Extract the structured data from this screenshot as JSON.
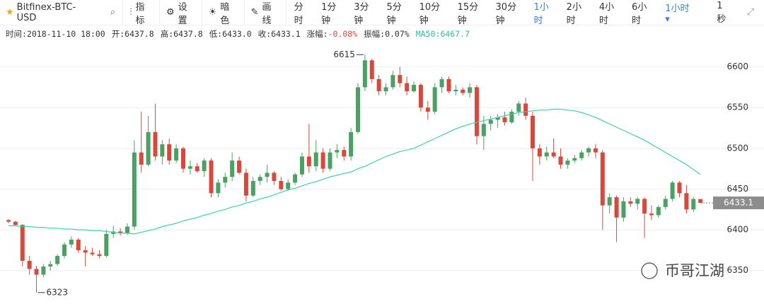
{
  "toolbar": {
    "symbol": "Bitfinex-BTC-USD",
    "buttons": [
      "指标",
      "设置",
      "暗色",
      "画线"
    ],
    "intervals": [
      "分时",
      "1分钟",
      "3分钟",
      "5分钟",
      "10分钟",
      "15分钟",
      "30分钟",
      "1小时",
      "2小时",
      "4小时",
      "6小时"
    ],
    "dropdown": "1小时",
    "speed": "1秒"
  },
  "info": [
    {
      "label": "时间:",
      "value": "2018-11-10 18:00"
    },
    {
      "label": "开:",
      "value": "6437.8"
    },
    {
      "label": "高:",
      "value": "6437.8"
    },
    {
      "label": "低:",
      "value": "6433.0"
    },
    {
      "label": "收:",
      "value": "6433.1"
    },
    {
      "label": "涨幅:",
      "value": "-0.08%"
    },
    {
      "label": "振幅:",
      "value": "0.07%"
    },
    {
      "label": "MA50:",
      "value": "6467.7"
    }
  ],
  "watermark": "币哥江湖",
  "chart_data": {
    "type": "candlestick",
    "up_color": "#4aa163",
    "down_color": "#d9483b",
    "ma_color": "#3fcfa8",
    "grid": true,
    "ylim": [
      6309,
      6630
    ],
    "yticks": [
      6350,
      6400,
      6450,
      6500,
      6550,
      6600
    ],
    "open": [
      6412,
      6410,
      6406,
      6362,
      6352,
      6345,
      6355,
      6358,
      6368,
      6382,
      6388,
      6375,
      6372,
      6370,
      6368,
      6395,
      6398,
      6396,
      6404,
      6495,
      6480,
      6520,
      6490,
      6505,
      6485,
      6500,
      6475,
      6478,
      6472,
      6485,
      6445,
      6458,
      6465,
      6485,
      6470,
      6442,
      6460,
      6465,
      6470,
      6460,
      6450,
      6458,
      6468,
      6490,
      6478,
      6495,
      6475,
      6495,
      6498,
      6490,
      6520,
      6575,
      6608,
      6585,
      6570,
      6575,
      6590,
      6580,
      6570,
      6578,
      6550,
      6545,
      6575,
      6585,
      6570,
      6572,
      6568,
      6575,
      6515,
      6530,
      6535,
      6538,
      6532,
      6545,
      6555,
      6540,
      6500,
      6490,
      6495,
      6490,
      6480,
      6485,
      6488,
      6495,
      6500,
      6495,
      6430,
      6440,
      6415,
      6435,
      6432,
      6438,
      6420,
      6418,
      6428,
      6438,
      6458,
      6445,
      6425,
      6437.8
    ],
    "high": [
      6413,
      6411,
      6407,
      6368,
      6356,
      6358,
      6362,
      6370,
      6385,
      6392,
      6390,
      6380,
      6378,
      6375,
      6400,
      6405,
      6402,
      6408,
      6510,
      6545,
      6540,
      6555,
      6510,
      6512,
      6505,
      6502,
      6485,
      6482,
      6488,
      6488,
      6462,
      6470,
      6495,
      6490,
      6475,
      6465,
      6468,
      6480,
      6472,
      6465,
      6462,
      6470,
      6495,
      6530,
      6510,
      6500,
      6500,
      6505,
      6502,
      6525,
      6580,
      6615,
      6610,
      6590,
      6580,
      6595,
      6600,
      6588,
      6582,
      6580,
      6558,
      6580,
      6588,
      6588,
      6578,
      6575,
      6580,
      6578,
      6540,
      6540,
      6542,
      6545,
      6548,
      6558,
      6562,
      6545,
      6505,
      6502,
      6512,
      6500,
      6488,
      6492,
      6498,
      6502,
      6505,
      6498,
      6445,
      6442,
      6440,
      6440,
      6440,
      6440,
      6430,
      6430,
      6442,
      6460,
      6460,
      6455,
      6440,
      6437.8
    ],
    "low": [
      6408,
      6405,
      6355,
      6345,
      6323,
      6342,
      6350,
      6356,
      6365,
      6378,
      6372,
      6355,
      6368,
      6365,
      6366,
      6390,
      6393,
      6394,
      6400,
      6470,
      6478,
      6485,
      6480,
      6480,
      6482,
      6470,
      6468,
      6470,
      6465,
      6440,
      6440,
      6452,
      6460,
      6468,
      6435,
      6440,
      6455,
      6458,
      6455,
      6448,
      6448,
      6455,
      6465,
      6470,
      6472,
      6470,
      6472,
      6488,
      6485,
      6485,
      6518,
      6570,
      6580,
      6565,
      6565,
      6572,
      6575,
      6565,
      6568,
      6545,
      6535,
      6542,
      6568,
      6568,
      6565,
      6565,
      6562,
      6505,
      6498,
      6522,
      6525,
      6528,
      6530,
      6540,
      6535,
      6460,
      6480,
      6485,
      6488,
      6475,
      6475,
      6482,
      6485,
      6490,
      6488,
      6400,
      6420,
      6385,
      6410,
      6428,
      6425,
      6390,
      6412,
      6415,
      6425,
      6435,
      6440,
      6420,
      6422,
      6433.0
    ],
    "close": [
      6410,
      6406,
      6362,
      6352,
      6345,
      6355,
      6358,
      6368,
      6382,
      6388,
      6375,
      6372,
      6370,
      6368,
      6395,
      6398,
      6396,
      6404,
      6495,
      6480,
      6520,
      6490,
      6505,
      6485,
      6500,
      6475,
      6478,
      6472,
      6485,
      6445,
      6458,
      6465,
      6485,
      6470,
      6442,
      6460,
      6465,
      6470,
      6460,
      6450,
      6458,
      6468,
      6490,
      6478,
      6495,
      6475,
      6495,
      6498,
      6490,
      6520,
      6575,
      6608,
      6585,
      6570,
      6575,
      6590,
      6580,
      6570,
      6578,
      6550,
      6545,
      6575,
      6585,
      6570,
      6572,
      6568,
      6575,
      6515,
      6530,
      6535,
      6538,
      6532,
      6545,
      6555,
      6540,
      6500,
      6490,
      6495,
      6490,
      6480,
      6485,
      6488,
      6495,
      6500,
      6495,
      6430,
      6440,
      6415,
      6435,
      6432,
      6438,
      6420,
      6418,
      6428,
      6438,
      6458,
      6445,
      6425,
      6437.8,
      6433.1
    ],
    "ma50": [
      6405,
      6405,
      6404,
      6404,
      6403,
      6403,
      6402,
      6402,
      6401,
      6401,
      6400,
      6400,
      6399,
      6399,
      6398,
      6397,
      6396,
      6396,
      6395,
      6397,
      6399,
      6401,
      6404,
      6406,
      6408,
      6411,
      6413,
      6415,
      6418,
      6420,
      6423,
      6425,
      6428,
      6430,
      6433,
      6435,
      6438,
      6440,
      6443,
      6446,
      6449,
      6451,
      6454,
      6457,
      6459,
      6462,
      6465,
      6467,
      6469,
      6471,
      6475,
      6478,
      6482,
      6486,
      6490,
      6493,
      6496,
      6498,
      6500,
      6504,
      6508,
      6512,
      6516,
      6520,
      6524,
      6527,
      6530,
      6532,
      6534,
      6536,
      6538,
      6540,
      6542,
      6544,
      6545,
      6546,
      6547,
      6547,
      6548,
      6548,
      6547,
      6546,
      6544,
      6541,
      6538,
      6534,
      6530,
      6526,
      6522,
      6518,
      6514,
      6510,
      6505,
      6500,
      6495,
      6490,
      6485,
      6480,
      6474,
      6468
    ],
    "annotations": [
      {
        "label": "6615",
        "value": 6615
      },
      {
        "label": "6323",
        "value": 6323
      }
    ],
    "current_price": {
      "label": "6433.1",
      "value": 6433.1
    }
  }
}
